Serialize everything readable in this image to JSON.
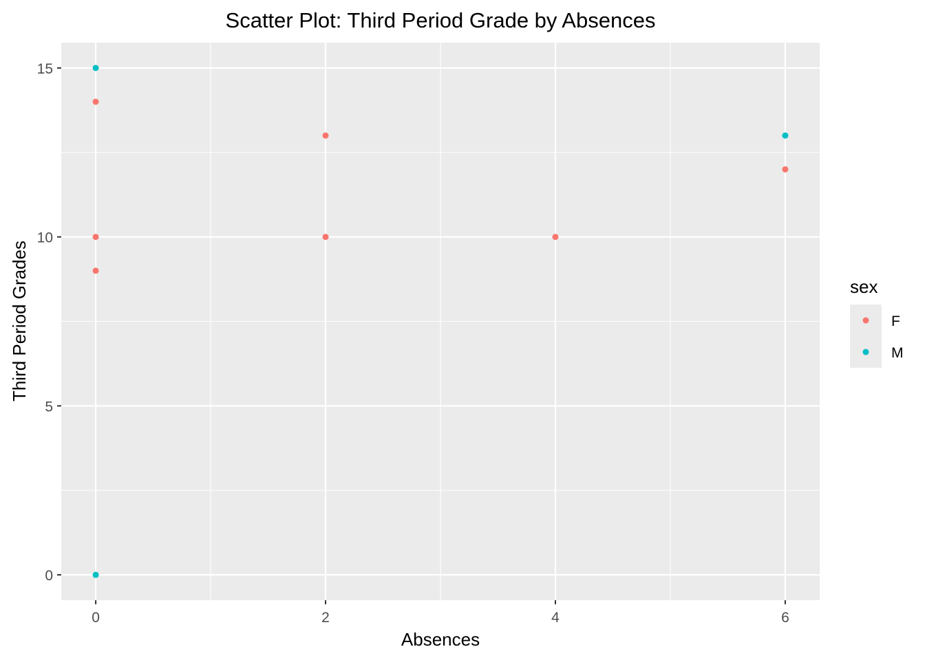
{
  "chart_data": {
    "type": "scatter",
    "title": "Scatter Plot: Third Period Grade by Absences",
    "xlabel": "Absences",
    "ylabel": "Third Period Grades",
    "xlim": [
      -0.3,
      6.3
    ],
    "ylim": [
      -0.75,
      15.75
    ],
    "x_ticks": [
      0,
      2,
      4,
      6
    ],
    "x_tick_labels": [
      "0",
      "2",
      "4",
      "6"
    ],
    "x_minor": [
      1,
      3,
      5
    ],
    "y_ticks": [
      0,
      5,
      10,
      15
    ],
    "y_tick_labels": [
      "0",
      "5",
      "10",
      "15"
    ],
    "y_minor": [
      2.5,
      7.5,
      12.5
    ],
    "grid": true,
    "panel_background": "#EBEBEB",
    "legend": {
      "title": "sex",
      "position": "right",
      "entries": [
        {
          "label": "F",
          "color": "#F8766D"
        },
        {
          "label": "M",
          "color": "#00BFC4"
        }
      ]
    },
    "series": [
      {
        "name": "F",
        "color": "#F8766D",
        "points": [
          {
            "x": 0,
            "y": 14
          },
          {
            "x": 0,
            "y": 10
          },
          {
            "x": 0,
            "y": 9
          },
          {
            "x": 2,
            "y": 13
          },
          {
            "x": 2,
            "y": 10
          },
          {
            "x": 4,
            "y": 10
          },
          {
            "x": 6,
            "y": 12
          }
        ]
      },
      {
        "name": "M",
        "color": "#00BFC4",
        "points": [
          {
            "x": 0,
            "y": 15
          },
          {
            "x": 0,
            "y": 0
          },
          {
            "x": 6,
            "y": 13
          }
        ]
      }
    ]
  }
}
